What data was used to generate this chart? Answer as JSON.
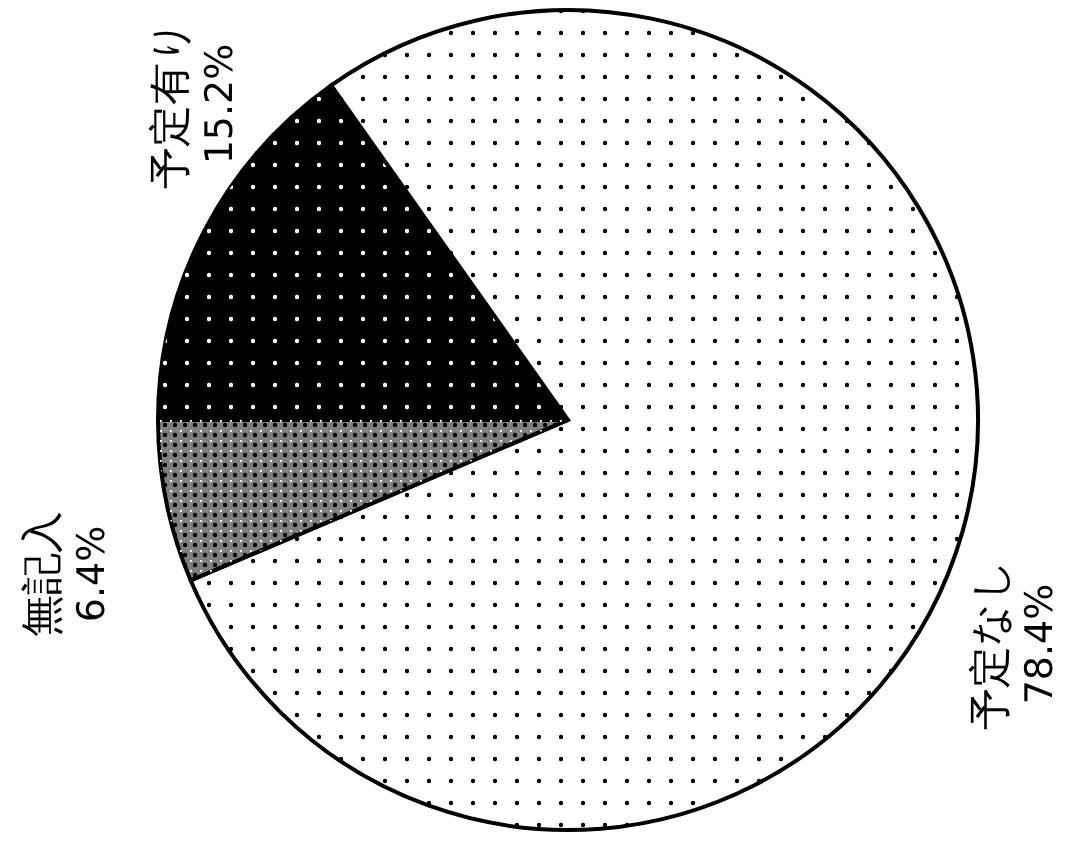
{
  "chart_data": {
    "type": "pie",
    "categories": [
      "予定有り",
      "予定なし",
      "無記入"
    ],
    "values": [
      15.2,
      78.4,
      6.4
    ],
    "value_labels": [
      "15.2%",
      "78.4%",
      "6.4%"
    ],
    "colors": [
      "#000000",
      "#ffffff",
      "#808080"
    ]
  }
}
